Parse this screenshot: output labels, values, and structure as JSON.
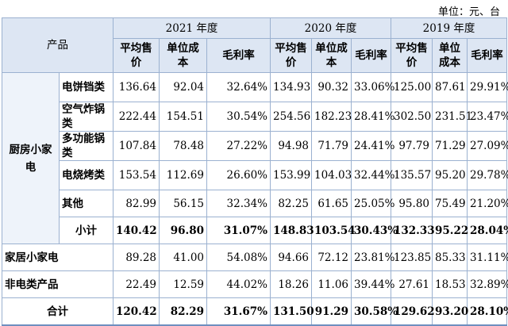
{
  "unit_note": "单位：元、台",
  "header": {
    "product": "产品",
    "years": [
      "2021 年度",
      "2020 年度",
      "2019 年度"
    ],
    "cols": [
      "平均售价",
      "单位成本",
      "毛利率"
    ]
  },
  "group": "厨房小家电",
  "rows": [
    {
      "name": "电饼铛类",
      "v": [
        "136.64",
        "92.04",
        "32.64%",
        "134.93",
        "90.32",
        "33.06%",
        "125.00",
        "87.61",
        "29.91%"
      ]
    },
    {
      "name": "空气炸锅类",
      "v": [
        "222.44",
        "154.51",
        "30.54%",
        "254.56",
        "182.23",
        "28.41%",
        "302.50",
        "231.51",
        "23.47%"
      ]
    },
    {
      "name": "多功能锅类",
      "v": [
        "107.84",
        "78.48",
        "27.22%",
        "94.98",
        "71.79",
        "24.41%",
        "97.79",
        "71.29",
        "27.09%"
      ]
    },
    {
      "name": "电烧烤类",
      "v": [
        "153.54",
        "112.69",
        "26.60%",
        "153.99",
        "104.03",
        "32.44%",
        "135.57",
        "95.20",
        "29.78%"
      ]
    },
    {
      "name": "其他",
      "v": [
        "82.99",
        "56.15",
        "32.34%",
        "82.25",
        "61.65",
        "25.05%",
        "95.80",
        "75.49",
        "21.20%"
      ]
    }
  ],
  "subtotal": {
    "name": "小计",
    "v": [
      "140.42",
      "96.80",
      "31.07%",
      "148.83",
      "103.54",
      "30.43%",
      "132.33",
      "95.22",
      "28.04%"
    ]
  },
  "home": {
    "name": "家居小家电",
    "v": [
      "89.28",
      "41.00",
      "54.08%",
      "94.66",
      "72.12",
      "23.81%",
      "123.85",
      "85.33",
      "31.11%"
    ]
  },
  "nonelec": {
    "name": "非电类产品",
    "v": [
      "22.49",
      "12.59",
      "44.02%",
      "18.26",
      "11.06",
      "39.44%",
      "27.61",
      "18.53",
      "32.89%"
    ]
  },
  "total": {
    "name": "合计",
    "v": [
      "120.42",
      "82.29",
      "31.67%",
      "131.50",
      "91.29",
      "30.58%",
      "129.62",
      "93.20",
      "28.10%"
    ]
  }
}
